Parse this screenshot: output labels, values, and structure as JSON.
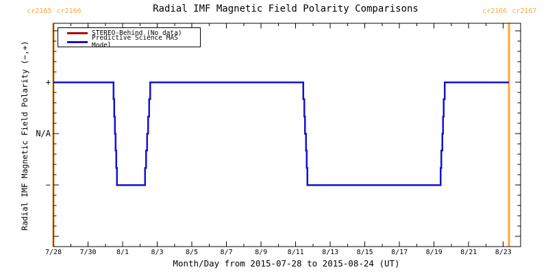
{
  "chart_data": {
    "type": "line",
    "title": "Radial IMF Magnetic Field Polarity Comparisons",
    "xlabel": "Month/Day from 2015-07-28 to 2015-08-24 (UT)",
    "ylabel": "Radial IMF Magnetic Field Polarity (−,+)",
    "x_start_date": "2015-07-28",
    "x_end_date": "2015-08-24",
    "x_range_days": [
      0,
      27
    ],
    "x_minor_step_days": 1,
    "x_major_ticks": [
      {
        "day": 0,
        "label": "7/28"
      },
      {
        "day": 2,
        "label": "7/30"
      },
      {
        "day": 4,
        "label": "8/1"
      },
      {
        "day": 6,
        "label": "8/3"
      },
      {
        "day": 8,
        "label": "8/5"
      },
      {
        "day": 10,
        "label": "8/7"
      },
      {
        "day": 12,
        "label": "8/9"
      },
      {
        "day": 14,
        "label": "8/11"
      },
      {
        "day": 16,
        "label": "8/13"
      },
      {
        "day": 18,
        "label": "8/15"
      },
      {
        "day": 20,
        "label": "8/17"
      },
      {
        "day": 22,
        "label": "8/19"
      },
      {
        "day": 24,
        "label": "8/21"
      },
      {
        "day": 26,
        "label": "8/23"
      }
    ],
    "ylim": [
      -2.17,
      2.17
    ],
    "y_minor_step": 0.2,
    "y_major_ticks": [
      {
        "value": 2,
        "label": ""
      },
      {
        "value": 1,
        "label": "+"
      },
      {
        "value": 0,
        "label": "N/A"
      },
      {
        "value": -1,
        "label": "−"
      },
      {
        "value": -2,
        "label": ""
      }
    ],
    "polarity_levels": {
      "plus": 1,
      "na": 0,
      "minus": -1
    },
    "grid": "off",
    "legend_position": "top-left-inside",
    "series": [
      {
        "name": "STEREO-Behind (No data)",
        "color": "#AA0000",
        "mode": "step-after",
        "points": []
      },
      {
        "name": "Predictive Science MAS Model",
        "color": "#1212D2",
        "mode": "step-after",
        "points": [
          [
            0,
            1
          ],
          [
            3.48,
            0.667
          ],
          [
            3.52,
            0.333
          ],
          [
            3.56,
            0
          ],
          [
            3.6,
            -0.333
          ],
          [
            3.64,
            -0.667
          ],
          [
            3.68,
            -1
          ],
          [
            5.3,
            -0.667
          ],
          [
            5.36,
            -0.333
          ],
          [
            5.42,
            0
          ],
          [
            5.48,
            0.333
          ],
          [
            5.54,
            0.667
          ],
          [
            5.6,
            1
          ],
          [
            14.45,
            0.667
          ],
          [
            14.5,
            0.333
          ],
          [
            14.54,
            0
          ],
          [
            14.59,
            -0.333
          ],
          [
            14.64,
            -0.667
          ],
          [
            14.68,
            -1
          ],
          [
            22.37,
            -0.667
          ],
          [
            22.42,
            -0.333
          ],
          [
            22.47,
            0
          ],
          [
            22.51,
            0.333
          ],
          [
            22.56,
            0.667
          ],
          [
            22.61,
            1
          ],
          [
            26.32,
            1
          ]
        ]
      }
    ],
    "annotations": {
      "color": "#FFA53C",
      "cr_boundaries": [
        {
          "day": 0,
          "labels": [
            "cr2165",
            "cr2166"
          ]
        },
        {
          "day": 26.32,
          "labels": [
            "cr2166",
            "cr2167"
          ]
        }
      ]
    }
  },
  "colors": {
    "background": "#FFFFFF",
    "frame": "#000000",
    "text": "#000000",
    "boundary_orange": "#FFA53C",
    "stereo_red": "#AA0000",
    "mas_blue": "#1212D2"
  }
}
